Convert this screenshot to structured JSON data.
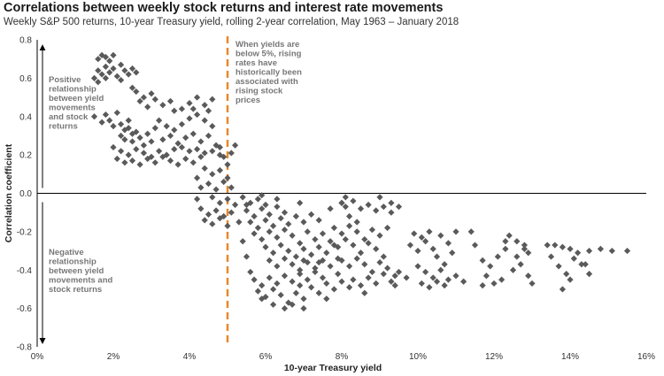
{
  "title": "Correlations between weekly stock returns and interest rate movements",
  "subtitle": "Weekly S&P 500 returns, 10-year Treasury yield, rolling 2-year correlation, May 1963 – January 2018",
  "colors": {
    "points": "#5a5a5a",
    "divider": "#e8872e",
    "axis": "#000000"
  },
  "annotations": {
    "positive": [
      "Positive",
      "relationship",
      "between yield",
      "movements",
      "and stock",
      "returns"
    ],
    "negative": [
      "Negative",
      "relationship",
      "between yield",
      "movements and",
      "stock returns"
    ],
    "threshold": [
      "When yields are",
      "below 5%, rising",
      "rates have",
      "historically been",
      "associated with",
      "rising stock",
      "prices"
    ]
  },
  "chart_data": {
    "type": "scatter",
    "xlabel": "10-year Treasury yield",
    "ylabel": "Correlation coefficient",
    "xlim": [
      0,
      16
    ],
    "ylim": [
      -0.8,
      0.8
    ],
    "x_ticks": [
      "0%",
      "2%",
      "4%",
      "6%",
      "8%",
      "10%",
      "12%",
      "14%",
      "16%"
    ],
    "y_ticks": [
      "0.8",
      "0.6",
      "0.4",
      "0.2",
      "0.0",
      "-0.2",
      "-0.4",
      "-0.6",
      "-0.8"
    ],
    "vertical_line_x": 5.0,
    "grid": false,
    "points": [
      [
        1.6,
        0.7
      ],
      [
        1.7,
        0.72
      ],
      [
        1.8,
        0.71
      ],
      [
        1.9,
        0.69
      ],
      [
        2.0,
        0.72
      ],
      [
        1.6,
        0.64
      ],
      [
        1.7,
        0.62
      ],
      [
        1.8,
        0.66
      ],
      [
        1.9,
        0.63
      ],
      [
        2.0,
        0.65
      ],
      [
        2.1,
        0.61
      ],
      [
        2.2,
        0.67
      ],
      [
        2.3,
        0.64
      ],
      [
        2.4,
        0.62
      ],
      [
        2.5,
        0.65
      ],
      [
        2.6,
        0.63
      ],
      [
        1.5,
        0.6
      ],
      [
        1.6,
        0.58
      ],
      [
        1.8,
        0.6
      ],
      [
        2.2,
        0.59
      ],
      [
        2.5,
        0.55
      ],
      [
        2.6,
        0.53
      ],
      [
        2.8,
        0.5
      ],
      [
        3.0,
        0.52
      ],
      [
        2.7,
        0.48
      ],
      [
        2.9,
        0.45
      ],
      [
        3.1,
        0.49
      ],
      [
        3.3,
        0.46
      ],
      [
        3.5,
        0.48
      ],
      [
        3.6,
        0.43
      ],
      [
        1.5,
        0.4
      ],
      [
        1.7,
        0.37
      ],
      [
        1.8,
        0.41
      ],
      [
        1.9,
        0.38
      ],
      [
        2.0,
        0.35
      ],
      [
        2.1,
        0.42
      ],
      [
        2.2,
        0.36
      ],
      [
        2.3,
        0.33
      ],
      [
        2.4,
        0.38
      ],
      [
        2.5,
        0.31
      ],
      [
        2.2,
        0.3
      ],
      [
        2.3,
        0.28
      ],
      [
        2.4,
        0.34
      ],
      [
        2.5,
        0.27
      ],
      [
        2.6,
        0.32
      ],
      [
        2.7,
        0.29
      ],
      [
        2.8,
        0.25
      ],
      [
        2.9,
        0.31
      ],
      [
        3.0,
        0.27
      ],
      [
        3.1,
        0.34
      ],
      [
        2.0,
        0.24
      ],
      [
        2.2,
        0.22
      ],
      [
        2.4,
        0.2
      ],
      [
        2.6,
        0.23
      ],
      [
        2.8,
        0.21
      ],
      [
        3.0,
        0.19
      ],
      [
        3.2,
        0.22
      ],
      [
        3.4,
        0.2
      ],
      [
        2.1,
        0.18
      ],
      [
        2.3,
        0.16
      ],
      [
        2.5,
        0.17
      ],
      [
        2.7,
        0.15
      ],
      [
        2.9,
        0.18
      ],
      [
        3.1,
        0.16
      ],
      [
        3.3,
        0.19
      ],
      [
        3.5,
        0.17
      ],
      [
        3.7,
        0.15
      ],
      [
        3.9,
        0.18
      ],
      [
        4.1,
        0.16
      ],
      [
        4.3,
        0.19
      ],
      [
        3.2,
        0.38
      ],
      [
        3.4,
        0.35
      ],
      [
        3.6,
        0.33
      ],
      [
        3.8,
        0.36
      ],
      [
        4.0,
        0.39
      ],
      [
        4.2,
        0.41
      ],
      [
        4.4,
        0.38
      ],
      [
        4.6,
        0.35
      ],
      [
        3.3,
        0.28
      ],
      [
        3.5,
        0.3
      ],
      [
        3.7,
        0.26
      ],
      [
        3.9,
        0.29
      ],
      [
        4.1,
        0.31
      ],
      [
        4.3,
        0.27
      ],
      [
        4.5,
        0.3
      ],
      [
        4.7,
        0.25
      ],
      [
        4.0,
        0.47
      ],
      [
        4.2,
        0.5
      ],
      [
        4.4,
        0.46
      ],
      [
        4.6,
        0.49
      ],
      [
        3.8,
        0.44
      ],
      [
        4.1,
        0.44
      ],
      [
        4.5,
        0.43
      ],
      [
        3.6,
        0.23
      ],
      [
        3.8,
        0.24
      ],
      [
        4.0,
        0.22
      ],
      [
        4.2,
        0.23
      ],
      [
        4.4,
        0.21
      ],
      [
        4.6,
        0.22
      ],
      [
        4.8,
        0.2
      ],
      [
        4.4,
        0.13
      ],
      [
        4.6,
        0.1
      ],
      [
        4.8,
        0.12
      ],
      [
        5.0,
        0.15
      ],
      [
        4.5,
        0.05
      ],
      [
        4.7,
        0.02
      ],
      [
        4.9,
        0.06
      ],
      [
        5.1,
        0.03
      ],
      [
        4.6,
        -0.02
      ],
      [
        4.8,
        -0.05
      ],
      [
        5.0,
        -0.03
      ],
      [
        4.3,
        -0.08
      ],
      [
        4.5,
        -0.11
      ],
      [
        4.7,
        -0.09
      ],
      [
        4.9,
        -0.12
      ],
      [
        5.1,
        -0.1
      ],
      [
        4.4,
        -0.14
      ],
      [
        4.6,
        -0.16
      ],
      [
        4.8,
        -0.13
      ],
      [
        5.0,
        -0.17
      ],
      [
        4.8,
        0.24
      ],
      [
        4.9,
        0.19
      ],
      [
        5.1,
        0.21
      ],
      [
        5.2,
        0.25
      ],
      [
        4.2,
        0.08
      ],
      [
        4.3,
        0.03
      ],
      [
        4.2,
        -0.03
      ],
      [
        5.2,
        -0.06
      ],
      [
        5.3,
        -0.15
      ],
      [
        5.0,
        0.08
      ],
      [
        5.4,
        -0.02
      ],
      [
        5.6,
        -0.05
      ],
      [
        5.8,
        -0.03
      ],
      [
        6.0,
        -0.06
      ],
      [
        5.5,
        -0.09
      ],
      [
        5.7,
        -0.12
      ],
      [
        5.9,
        -0.08
      ],
      [
        6.1,
        -0.11
      ],
      [
        6.3,
        -0.07
      ],
      [
        6.5,
        -0.1
      ],
      [
        5.6,
        -0.15
      ],
      [
        5.8,
        -0.18
      ],
      [
        6.0,
        -0.14
      ],
      [
        6.2,
        -0.17
      ],
      [
        6.4,
        -0.13
      ],
      [
        6.6,
        -0.16
      ],
      [
        6.8,
        -0.12
      ],
      [
        7.0,
        -0.15
      ],
      [
        7.2,
        -0.11
      ],
      [
        7.4,
        -0.14
      ],
      [
        5.7,
        -0.21
      ],
      [
        5.9,
        -0.24
      ],
      [
        6.1,
        -0.2
      ],
      [
        6.3,
        -0.23
      ],
      [
        6.5,
        -0.19
      ],
      [
        6.7,
        -0.22
      ],
      [
        6.9,
        -0.26
      ],
      [
        7.1,
        -0.2
      ],
      [
        7.3,
        -0.24
      ],
      [
        7.5,
        -0.21
      ],
      [
        6.0,
        -0.28
      ],
      [
        6.2,
        -0.31
      ],
      [
        6.4,
        -0.27
      ],
      [
        6.6,
        -0.3
      ],
      [
        6.8,
        -0.33
      ],
      [
        7.0,
        -0.29
      ],
      [
        7.2,
        -0.32
      ],
      [
        7.4,
        -0.28
      ],
      [
        7.6,
        -0.31
      ],
      [
        7.8,
        -0.27
      ],
      [
        6.1,
        -0.35
      ],
      [
        6.3,
        -0.38
      ],
      [
        6.5,
        -0.34
      ],
      [
        6.7,
        -0.37
      ],
      [
        6.9,
        -0.4
      ],
      [
        7.1,
        -0.36
      ],
      [
        7.3,
        -0.39
      ],
      [
        7.5,
        -0.35
      ],
      [
        7.7,
        -0.38
      ],
      [
        7.9,
        -0.34
      ],
      [
        5.7,
        -0.45
      ],
      [
        5.9,
        -0.48
      ],
      [
        6.1,
        -0.44
      ],
      [
        6.3,
        -0.47
      ],
      [
        6.5,
        -0.43
      ],
      [
        6.7,
        -0.46
      ],
      [
        6.9,
        -0.42
      ],
      [
        7.1,
        -0.45
      ],
      [
        7.3,
        -0.41
      ],
      [
        7.5,
        -0.44
      ],
      [
        5.8,
        -0.51
      ],
      [
        6.0,
        -0.54
      ],
      [
        6.2,
        -0.5
      ],
      [
        6.4,
        -0.53
      ],
      [
        6.6,
        -0.57
      ],
      [
        6.8,
        -0.52
      ],
      [
        7.0,
        -0.55
      ],
      [
        7.2,
        -0.49
      ],
      [
        6.5,
        -0.6
      ],
      [
        6.7,
        -0.58
      ],
      [
        8.0,
        -0.05
      ],
      [
        8.1,
        -0.07
      ],
      [
        8.3,
        -0.04
      ],
      [
        8.5,
        -0.08
      ],
      [
        8.7,
        -0.06
      ],
      [
        8.9,
        -0.09
      ],
      [
        9.1,
        -0.07
      ],
      [
        9.3,
        -0.1
      ],
      [
        8.2,
        -0.12
      ],
      [
        8.4,
        -0.15
      ],
      [
        7.8,
        -0.18
      ],
      [
        8.0,
        -0.21
      ],
      [
        8.2,
        -0.17
      ],
      [
        8.4,
        -0.2
      ],
      [
        8.6,
        -0.24
      ],
      [
        8.8,
        -0.19
      ],
      [
        9.0,
        -0.22
      ],
      [
        9.2,
        -0.18
      ],
      [
        7.7,
        -0.25
      ],
      [
        7.9,
        -0.28
      ],
      [
        8.1,
        -0.24
      ],
      [
        8.3,
        -0.27
      ],
      [
        8.5,
        -0.31
      ],
      [
        8.7,
        -0.26
      ],
      [
        8.9,
        -0.29
      ],
      [
        9.1,
        -0.33
      ],
      [
        8.0,
        -0.35
      ],
      [
        8.2,
        -0.38
      ],
      [
        8.4,
        -0.34
      ],
      [
        8.6,
        -0.37
      ],
      [
        8.8,
        -0.41
      ],
      [
        9.0,
        -0.36
      ],
      [
        9.2,
        -0.39
      ],
      [
        9.4,
        -0.43
      ],
      [
        8.3,
        -0.45
      ],
      [
        8.5,
        -0.48
      ],
      [
        8.7,
        -0.44
      ],
      [
        8.9,
        -0.47
      ],
      [
        9.1,
        -0.42
      ],
      [
        9.3,
        -0.46
      ],
      [
        9.5,
        -0.41
      ],
      [
        9.7,
        -0.44
      ],
      [
        7.6,
        -0.47
      ],
      [
        7.8,
        -0.5
      ],
      [
        8.0,
        -0.46
      ],
      [
        8.2,
        -0.49
      ],
      [
        7.4,
        -0.52
      ],
      [
        7.6,
        -0.55
      ],
      [
        8.0,
        -0.05
      ],
      [
        8.1,
        -0.02
      ],
      [
        5.5,
        -0.06
      ],
      [
        5.9,
        -0.01
      ],
      [
        6.3,
        -0.03
      ],
      [
        6.9,
        -0.05
      ],
      [
        7.7,
        -0.08
      ],
      [
        9.0,
        -0.02
      ],
      [
        9.3,
        -0.05
      ],
      [
        9.5,
        -0.07
      ],
      [
        5.4,
        -0.25
      ],
      [
        5.5,
        -0.33
      ],
      [
        5.6,
        -0.41
      ],
      [
        5.9,
        -0.55
      ],
      [
        6.2,
        -0.58
      ],
      [
        7.0,
        -0.6
      ],
      [
        8.6,
        -0.52
      ],
      [
        9.4,
        -0.48
      ],
      [
        6.9,
        -0.48
      ],
      [
        7.4,
        -0.36
      ],
      [
        7.0,
        -0.35
      ],
      [
        7.9,
        -0.42
      ],
      [
        9.9,
        -0.21
      ],
      [
        10.1,
        -0.23
      ],
      [
        10.3,
        -0.2
      ],
      [
        9.8,
        -0.27
      ],
      [
        10.0,
        -0.3
      ],
      [
        10.2,
        -0.25
      ],
      [
        10.4,
        -0.29
      ],
      [
        10.6,
        -0.22
      ],
      [
        10.8,
        -0.26
      ],
      [
        11.0,
        -0.2
      ],
      [
        10.5,
        -0.33
      ],
      [
        10.7,
        -0.37
      ],
      [
        10.9,
        -0.31
      ],
      [
        10.2,
        -0.41
      ],
      [
        10.4,
        -0.44
      ],
      [
        10.6,
        -0.4
      ],
      [
        10.8,
        -0.45
      ],
      [
        10.1,
        -0.47
      ],
      [
        10.3,
        -0.49
      ],
      [
        10.5,
        -0.46
      ],
      [
        10.7,
        -0.48
      ],
      [
        11.0,
        -0.43
      ],
      [
        11.2,
        -0.46
      ],
      [
        10.0,
        -0.38
      ],
      [
        11.4,
        -0.2
      ],
      [
        11.5,
        -0.27
      ],
      [
        11.7,
        -0.35
      ],
      [
        11.9,
        -0.38
      ],
      [
        11.8,
        -0.43
      ],
      [
        12.0,
        -0.47
      ],
      [
        12.2,
        -0.45
      ],
      [
        11.7,
        -0.48
      ],
      [
        12.1,
        -0.33
      ],
      [
        12.3,
        -0.29
      ],
      [
        12.4,
        -0.22
      ],
      [
        12.6,
        -0.25
      ],
      [
        12.8,
        -0.27
      ],
      [
        12.5,
        -0.4
      ],
      [
        12.7,
        -0.37
      ],
      [
        12.9,
        -0.31
      ],
      [
        12.9,
        -0.43
      ],
      [
        13.0,
        -0.47
      ],
      [
        12.6,
        -0.33
      ],
      [
        12.8,
        -0.29
      ],
      [
        12.3,
        -0.25
      ],
      [
        13.4,
        -0.27
      ],
      [
        13.6,
        -0.27
      ],
      [
        13.8,
        -0.28
      ],
      [
        14.0,
        -0.29
      ],
      [
        14.2,
        -0.31
      ],
      [
        14.5,
        -0.3
      ],
      [
        14.8,
        -0.29
      ],
      [
        15.1,
        -0.3
      ],
      [
        15.5,
        -0.3
      ],
      [
        14.1,
        -0.34
      ],
      [
        14.3,
        -0.37
      ],
      [
        14.0,
        -0.45
      ],
      [
        13.9,
        -0.42
      ],
      [
        13.7,
        -0.38
      ],
      [
        13.5,
        -0.33
      ],
      [
        14.5,
        -0.42
      ],
      [
        14.4,
        -0.37
      ],
      [
        13.8,
        -0.5
      ]
    ]
  }
}
